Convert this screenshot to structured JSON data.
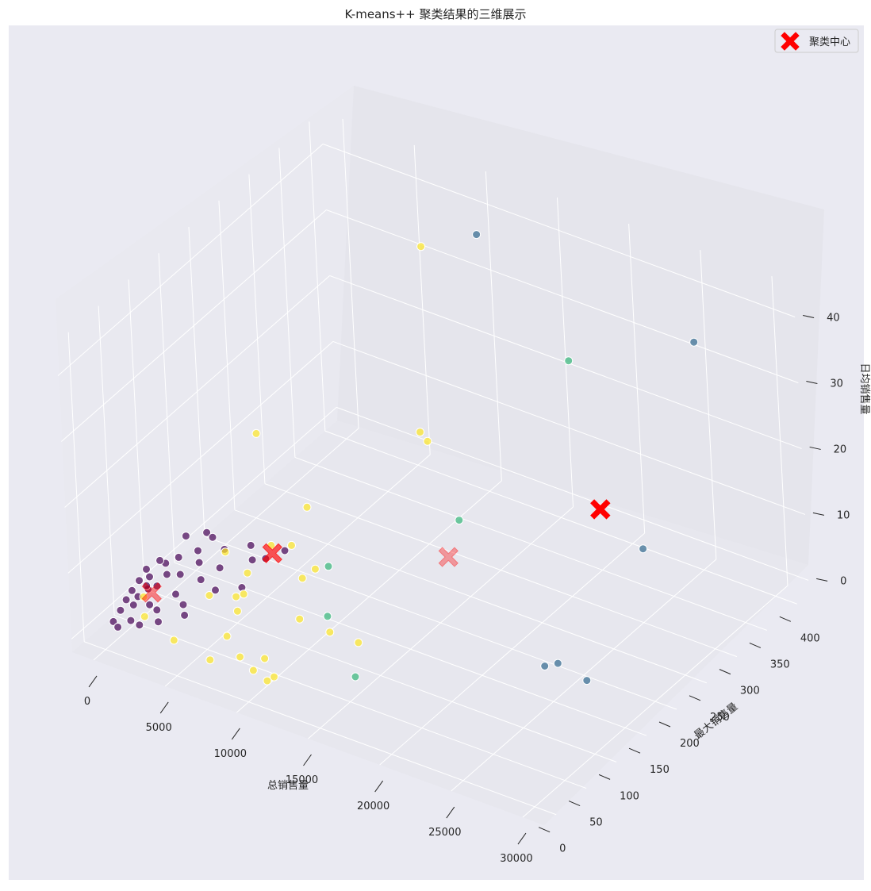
{
  "chart_data": {
    "type": "scatter",
    "title": "K-means++ 聚类结果的三维展示",
    "xlabel": "总销售量",
    "ylabel": "最大销售量",
    "zlabel": "日均销售量",
    "xlim": [
      -1500,
      31500
    ],
    "ylim": [
      -20,
      420
    ],
    "zlim": [
      -2,
      45
    ],
    "x_ticks": [
      "0",
      "5000",
      "10000",
      "15000",
      "20000",
      "25000",
      "30000"
    ],
    "x_tick_values": [
      0,
      5000,
      10000,
      15000,
      20000,
      25000,
      30000
    ],
    "y_ticks": [
      "0",
      "50",
      "100",
      "150",
      "200",
      "250",
      "300",
      "350",
      "400"
    ],
    "y_tick_values": [
      0,
      50,
      100,
      150,
      200,
      250,
      300,
      350,
      400
    ],
    "z_ticks": [
      "0",
      "10",
      "20",
      "30",
      "40"
    ],
    "z_tick_values": [
      0,
      10,
      20,
      30,
      40
    ],
    "grid": true,
    "legend_position": "top-right",
    "legend": [
      {
        "label": "聚类中心",
        "marker": "X",
        "color": "#ff0000"
      }
    ],
    "colors": {
      "cluster0": "#440154",
      "cluster1": "#31688e",
      "cluster2": "#35b779",
      "cluster3": "#fde725",
      "center": "#ff0000",
      "pane_back": "#e5e5ec",
      "pane_side": "#e9e9f0",
      "pane_floor": "#e7e7ee",
      "figure_bg": "#eaeaf2"
    },
    "clusters": [
      {
        "id": 0,
        "color": "#440154",
        "points": [
          [
            700,
            40,
            3.4
          ],
          [
            700,
            60,
            4.8
          ],
          [
            1000,
            80,
            5.5
          ],
          [
            1000,
            50,
            4.0
          ],
          [
            1500,
            70,
            5.0
          ],
          [
            1500,
            90,
            6.0
          ],
          [
            2000,
            110,
            5.8
          ],
          [
            2000,
            80,
            4.6
          ],
          [
            2500,
            100,
            5.2
          ],
          [
            2500,
            60,
            3.6
          ],
          [
            3000,
            130,
            5.2
          ],
          [
            3000,
            90,
            3.8
          ],
          [
            3500,
            110,
            4.4
          ],
          [
            4000,
            150,
            5.0
          ],
          [
            4500,
            140,
            4.0
          ],
          [
            5000,
            150,
            3.8
          ],
          [
            5500,
            170,
            3.8
          ],
          [
            5000,
            110,
            2.6
          ],
          [
            4000,
            90,
            3.0
          ],
          [
            3000,
            60,
            2.4
          ],
          [
            2000,
            40,
            2.4
          ],
          [
            1000,
            20,
            1.6
          ],
          [
            300,
            20,
            2.6
          ],
          [
            300,
            40,
            4.0
          ],
          [
            500,
            60,
            5.8
          ],
          [
            1200,
            110,
            7.4
          ],
          [
            1800,
            130,
            6.8
          ],
          [
            800,
            30,
            3.0
          ],
          [
            1500,
            40,
            2.8
          ],
          [
            200,
            10,
            1.6
          ],
          [
            500,
            10,
            1.0
          ],
          [
            2500,
            30,
            1.8
          ],
          [
            3500,
            50,
            2.0
          ],
          [
            1200,
            60,
            3.8
          ],
          [
            600,
            80,
            5.6
          ],
          [
            2200,
            130,
            6.4
          ],
          [
            300,
            30,
            3.4
          ],
          [
            900,
            50,
            4.4
          ],
          [
            1600,
            20,
            1.4
          ],
          [
            400,
            50,
            4.8
          ]
        ]
      },
      {
        "id": 1,
        "color": "#31688e",
        "points": [
          [
            10000,
            400,
            37
          ],
          [
            26000,
            380,
            35
          ],
          [
            27000,
            260,
            14
          ],
          [
            25000,
            160,
            3
          ],
          [
            24500,
            150,
            3
          ],
          [
            27000,
            160,
            2
          ]
        ]
      },
      {
        "id": 2,
        "color": "#35b779",
        "points": [
          [
            17000,
            380,
            25
          ],
          [
            14000,
            260,
            8
          ],
          [
            9000,
            160,
            5
          ],
          [
            11000,
            110,
            3
          ],
          [
            15000,
            60,
            1
          ]
        ]
      },
      {
        "id": 3,
        "color": "#fde725",
        "points": [
          [
            6000,
            400,
            32
          ],
          [
            3000,
            190,
            18
          ],
          [
            7500,
            350,
            9
          ],
          [
            8000,
            350,
            8
          ],
          [
            5000,
            220,
            6
          ],
          [
            5000,
            160,
            5
          ],
          [
            5000,
            120,
            4
          ],
          [
            6000,
            170,
            5
          ],
          [
            6000,
            90,
            4
          ],
          [
            3500,
            120,
            6
          ],
          [
            2000,
            20,
            6
          ],
          [
            2000,
            20,
            3
          ],
          [
            4000,
            80,
            3
          ],
          [
            4000,
            20,
            1
          ],
          [
            5000,
            100,
            2
          ],
          [
            5500,
            90,
            1
          ],
          [
            6000,
            60,
            0
          ],
          [
            6500,
            20,
            0
          ],
          [
            8500,
            150,
            5
          ],
          [
            9000,
            110,
            1
          ],
          [
            8000,
            140,
            4
          ],
          [
            8200,
            30,
            1
          ],
          [
            10500,
            20,
            0
          ],
          [
            11000,
            20,
            1
          ],
          [
            12000,
            90,
            3
          ],
          [
            14000,
            90,
            3
          ],
          [
            10000,
            10,
            2
          ],
          [
            9500,
            40,
            1
          ]
        ]
      }
    ],
    "centers": [
      [
        800,
        60,
        2.5
      ],
      [
        5500,
        150,
        5
      ],
      [
        14000,
        240,
        4
      ],
      [
        25000,
        240,
        20
      ]
    ]
  }
}
